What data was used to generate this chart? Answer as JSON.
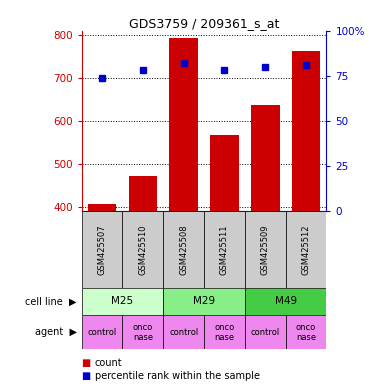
{
  "title": "GDS3759 / 209361_s_at",
  "samples": [
    "GSM425507",
    "GSM425510",
    "GSM425508",
    "GSM425511",
    "GSM425509",
    "GSM425512"
  ],
  "counts": [
    407,
    472,
    793,
    567,
    638,
    762
  ],
  "percentile_ranks": [
    74,
    78,
    82,
    78,
    80,
    81
  ],
  "ylim_left": [
    390,
    810
  ],
  "ylim_right": [
    0,
    100
  ],
  "yticks_left": [
    400,
    500,
    600,
    700,
    800
  ],
  "yticks_right": [
    0,
    25,
    50,
    75,
    100
  ],
  "bar_color": "#cc0000",
  "dot_color": "#0000cc",
  "cell_lines": [
    [
      "M25",
      0,
      2
    ],
    [
      "M29",
      2,
      4
    ],
    [
      "M49",
      4,
      6
    ]
  ],
  "cell_line_colors": [
    "#ccffcc",
    "#88ee88",
    "#44cc44"
  ],
  "agents": [
    "control",
    "onconase",
    "control",
    "onconase",
    "control",
    "onconase"
  ],
  "agent_color": "#ee88ee",
  "sample_bg_color": "#cccccc",
  "grid_color": "#888888",
  "legend": [
    {
      "label": "count",
      "color": "#cc0000",
      "marker": "s"
    },
    {
      "label": "percentile rank within the sample",
      "color": "#0000cc",
      "marker": "s"
    }
  ]
}
